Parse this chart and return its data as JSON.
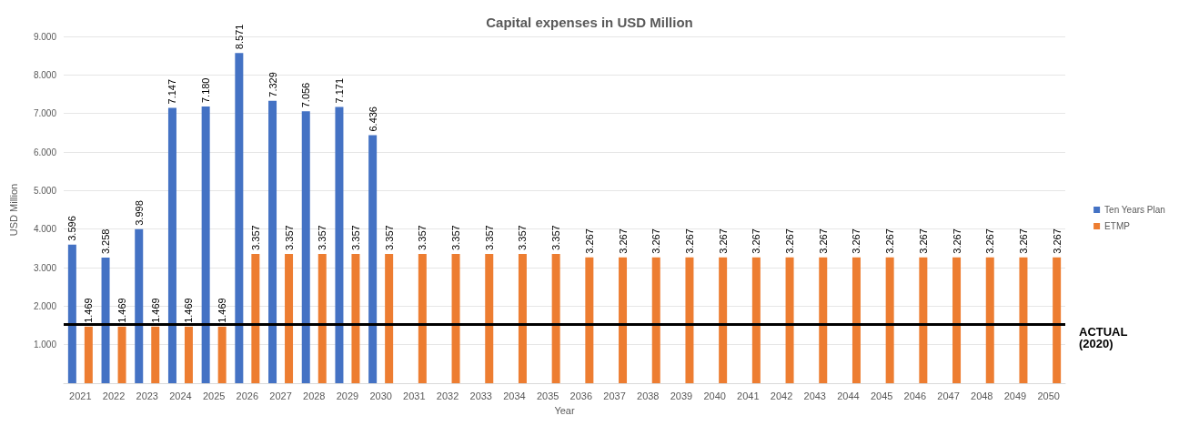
{
  "chart_data": {
    "type": "bar",
    "title": "Capital expenses in USD Million",
    "xlabel": "Year",
    "ylabel": "USD Million",
    "categories": [
      "2021",
      "2022",
      "2023",
      "2024",
      "2025",
      "2026",
      "2027",
      "2028",
      "2029",
      "2030",
      "2031",
      "2032",
      "2033",
      "2034",
      "2035",
      "2036",
      "2037",
      "2038",
      "2039",
      "2040",
      "2041",
      "2042",
      "2043",
      "2044",
      "2045",
      "2046",
      "2047",
      "2048",
      "2049",
      "2050"
    ],
    "series": [
      {
        "name": "Ten Years Plan",
        "color": "#4472c4",
        "values": [
          3596,
          3258,
          3998,
          7147,
          7180,
          8571,
          7329,
          7056,
          7171,
          6436,
          null,
          null,
          null,
          null,
          null,
          null,
          null,
          null,
          null,
          null,
          null,
          null,
          null,
          null,
          null,
          null,
          null,
          null,
          null,
          null
        ],
        "value_labels": [
          "3.596",
          "3.258",
          "3.998",
          "7.147",
          "7.180",
          "8.571",
          "7.329",
          "7.056",
          "7.171",
          "6.436",
          null,
          null,
          null,
          null,
          null,
          null,
          null,
          null,
          null,
          null,
          null,
          null,
          null,
          null,
          null,
          null,
          null,
          null,
          null,
          null
        ]
      },
      {
        "name": "ETMP",
        "color": "#ed7d31",
        "values": [
          1469,
          1469,
          1469,
          1469,
          1469,
          3357,
          3357,
          3357,
          3357,
          3357,
          3357,
          3357,
          3357,
          3357,
          3357,
          3267,
          3267,
          3267,
          3267,
          3267,
          3267,
          3267,
          3267,
          3267,
          3267,
          3267,
          3267,
          3267,
          3267,
          3267
        ],
        "value_labels": [
          "1.469",
          "1.469",
          "1.469",
          "1.469",
          "1.469",
          "3.357",
          "3.357",
          "3.357",
          "3.357",
          "3.357",
          "3.357",
          "3.357",
          "3.357",
          "3.357",
          "3.357",
          "3.267",
          "3.267",
          "3.267",
          "3.267",
          "3.267",
          "3.267",
          "3.267",
          "3.267",
          "3.267",
          "3.267",
          "3.267",
          "3.267",
          "3.267",
          "3.267",
          "3.267"
        ]
      }
    ],
    "ylim": [
      0,
      9000
    ],
    "yticks": [
      {
        "value": 0,
        "label": null
      },
      {
        "value": 1000,
        "label": "1.000"
      },
      {
        "value": 2000,
        "label": "2.000"
      },
      {
        "value": 3000,
        "label": "3.000"
      },
      {
        "value": 4000,
        "label": "4.000"
      },
      {
        "value": 5000,
        "label": "5.000"
      },
      {
        "value": 6000,
        "label": "6.000"
      },
      {
        "value": 7000,
        "label": "7.000"
      },
      {
        "value": 8000,
        "label": "8.000"
      },
      {
        "value": 9000,
        "label": "9.000"
      }
    ],
    "grid": "y",
    "legend": "right",
    "ref_lines": [
      {
        "axis": "y",
        "value": 1530,
        "label": "ACTUAL\n(2020)",
        "color": "#000000"
      }
    ]
  }
}
